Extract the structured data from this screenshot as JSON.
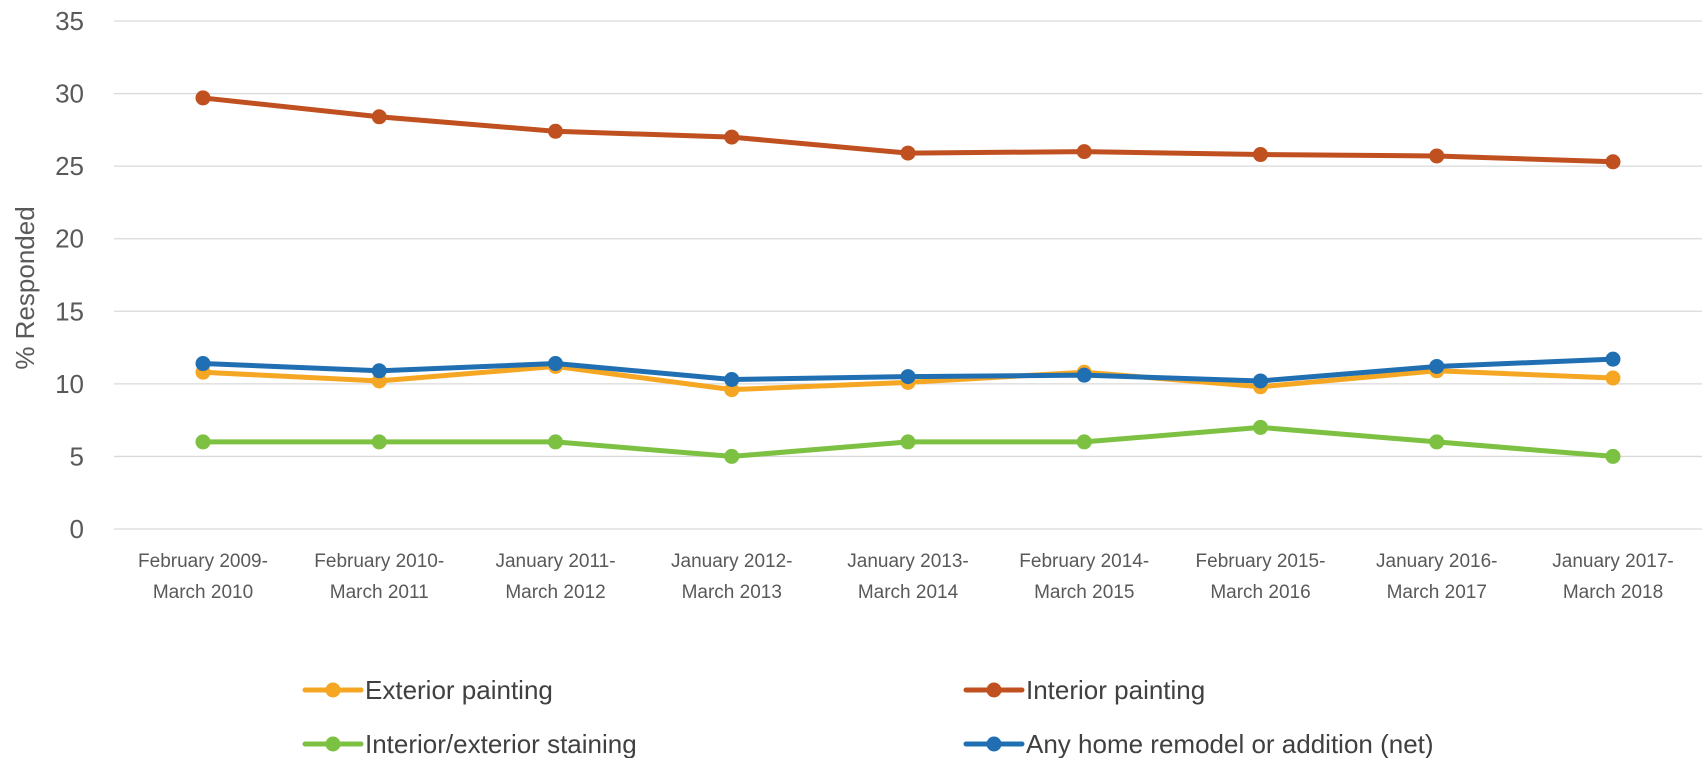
{
  "chart_data": {
    "type": "line",
    "title": "",
    "xlabel": "",
    "ylabel": "% Responded",
    "ylim": [
      0,
      35
    ],
    "yticks": [
      0,
      5,
      10,
      15,
      20,
      25,
      30,
      35
    ],
    "grid": true,
    "legend_position": "bottom",
    "categories": [
      [
        "February 2009-",
        "March 2010"
      ],
      [
        "February 2010-",
        "March 2011"
      ],
      [
        "January 2011-",
        "March 2012"
      ],
      [
        "January 2012-",
        "March 2013"
      ],
      [
        "January 2013-",
        "March 2014"
      ],
      [
        "February 2014-",
        "March 2015"
      ],
      [
        "February 2015-",
        "March 2016"
      ],
      [
        "January 2016-",
        "March 2017"
      ],
      [
        "January 2017-",
        "March 2018"
      ]
    ],
    "series": [
      {
        "name": "Exterior painting",
        "color": "#f5a623",
        "values": [
          10.8,
          10.2,
          11.2,
          9.6,
          10.1,
          10.8,
          9.8,
          10.9,
          10.4
        ]
      },
      {
        "name": "Interior painting",
        "color": "#c0501f",
        "values": [
          29.7,
          28.4,
          27.4,
          27.0,
          25.9,
          26.0,
          25.8,
          25.7,
          25.3
        ]
      },
      {
        "name": "Interior/exterior staining",
        "color": "#7cc142",
        "values": [
          6,
          6,
          6,
          5,
          6,
          6,
          7,
          6,
          5
        ]
      },
      {
        "name": "Any home remodel or addition (net)",
        "color": "#1f6fb2",
        "values": [
          11.4,
          10.9,
          11.4,
          10.3,
          10.5,
          10.6,
          10.2,
          11.2,
          11.7
        ]
      }
    ]
  }
}
